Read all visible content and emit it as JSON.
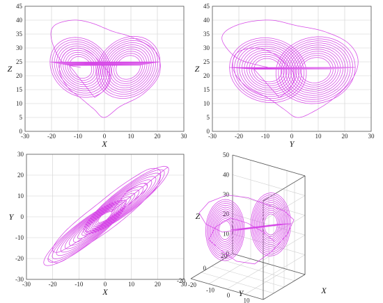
{
  "chart_data": [
    {
      "type": "line",
      "panel": "x-z projection",
      "xlabel": "X",
      "ylabel": "Z",
      "xlim": [
        -30,
        30
      ],
      "ylim": [
        0,
        45
      ],
      "xticks": [
        "-30",
        "-20",
        "-10",
        "0",
        "10",
        "20",
        "30"
      ],
      "yticks": [
        "0",
        "5",
        "10",
        "15",
        "20",
        "25",
        "30",
        "35",
        "40",
        "45"
      ],
      "grid": true,
      "color": "#d43ee6",
      "series": [
        {
          "x": [
            -9,
            -16,
            -20,
            -19,
            -12,
            -5,
            3,
            10,
            18,
            21,
            20,
            14,
            6,
            0,
            -4,
            -9,
            -14,
            -17,
            -15,
            -10,
            -5,
            -1,
            2,
            0,
            -4
          ],
          "y": [
            23,
            25,
            33,
            38,
            40,
            39,
            36,
            34,
            30,
            25,
            19,
            13,
            9,
            5,
            8,
            12,
            16,
            22,
            28,
            30,
            28,
            24,
            20,
            15,
            12
          ]
        }
      ]
    },
    {
      "type": "line",
      "panel": "y-z projection",
      "xlabel": "Y",
      "ylabel": "Z",
      "xlim": [
        -30,
        30
      ],
      "ylim": [
        0,
        45
      ],
      "xticks": [
        "-30",
        "-20",
        "-10",
        "0",
        "10",
        "20",
        "30"
      ],
      "yticks": [
        "0",
        "5",
        "10",
        "15",
        "20",
        "25",
        "30",
        "35",
        "40",
        "45"
      ],
      "grid": true,
      "color": "#d43ee6",
      "series": [
        {
          "x": [
            -9,
            -20,
            -26,
            -25,
            -18,
            -8,
            2,
            12,
            21,
            25,
            23,
            16,
            8,
            2,
            -3,
            -9,
            -17,
            -22,
            -21,
            -14,
            -7,
            -2,
            1,
            -1,
            -5
          ],
          "y": [
            23,
            26,
            32,
            36,
            39,
            40,
            38,
            36,
            32,
            26,
            19,
            12,
            7,
            5,
            8,
            12,
            16,
            22,
            28,
            30,
            28,
            24,
            20,
            15,
            12
          ]
        }
      ]
    },
    {
      "type": "line",
      "panel": "x-y projection",
      "xlabel": "X",
      "ylabel": "Y",
      "xlim": [
        -30,
        30
      ],
      "ylim": [
        -30,
        30
      ],
      "xticks": [
        "-30",
        "-20",
        "-10",
        "0",
        "10",
        "20",
        "30"
      ],
      "yticks": [
        "-30",
        "-20",
        "-10",
        "0",
        "10",
        "20",
        "30"
      ],
      "grid": true,
      "color": "#d43ee6",
      "series": [
        {
          "x": [
            -22,
            -18,
            -12,
            -5,
            2,
            9,
            15,
            20,
            21,
            17,
            11,
            4,
            -3,
            -10,
            -16,
            -20,
            -18,
            -12,
            -6,
            0,
            6,
            12,
            16,
            14,
            8
          ],
          "y": [
            -20,
            -22,
            -18,
            -12,
            -6,
            1,
            8,
            15,
            22,
            23,
            19,
            13,
            6,
            -1,
            -8,
            -15,
            -17,
            -13,
            -8,
            -3,
            3,
            9,
            14,
            16,
            12
          ]
        }
      ]
    },
    {
      "type": "line",
      "panel": "3D view",
      "xlabel": "X",
      "ylabel": "Y",
      "zlabel": "Z",
      "xlim": [
        -20,
        20
      ],
      "ylim": [
        -20,
        20
      ],
      "zlim": [
        0,
        50
      ],
      "xticks": [
        "-20",
        "-10",
        "0",
        "10",
        "20"
      ],
      "yticks": [
        "20",
        "0",
        "-20"
      ],
      "zticks": [
        "0",
        "10",
        "20",
        "30",
        "40",
        "50"
      ],
      "grid": true,
      "color": "#d43ee6",
      "series": [
        {
          "x": [
            -9,
            -14,
            -16,
            -13,
            -7,
            0,
            6,
            12,
            15,
            13,
            8,
            2,
            -4,
            -9,
            -13,
            -11,
            -6,
            0,
            5,
            9
          ],
          "y": [
            -9,
            -16,
            -19,
            -15,
            -8,
            0,
            7,
            14,
            18,
            15,
            9,
            3,
            -4,
            -10,
            -15,
            -12,
            -6,
            0,
            6,
            10
          ],
          "z": [
            23,
            28,
            34,
            39,
            42,
            40,
            36,
            32,
            27,
            20,
            12,
            6,
            8,
            14,
            20,
            26,
            30,
            27,
            22,
            17
          ]
        }
      ]
    }
  ]
}
